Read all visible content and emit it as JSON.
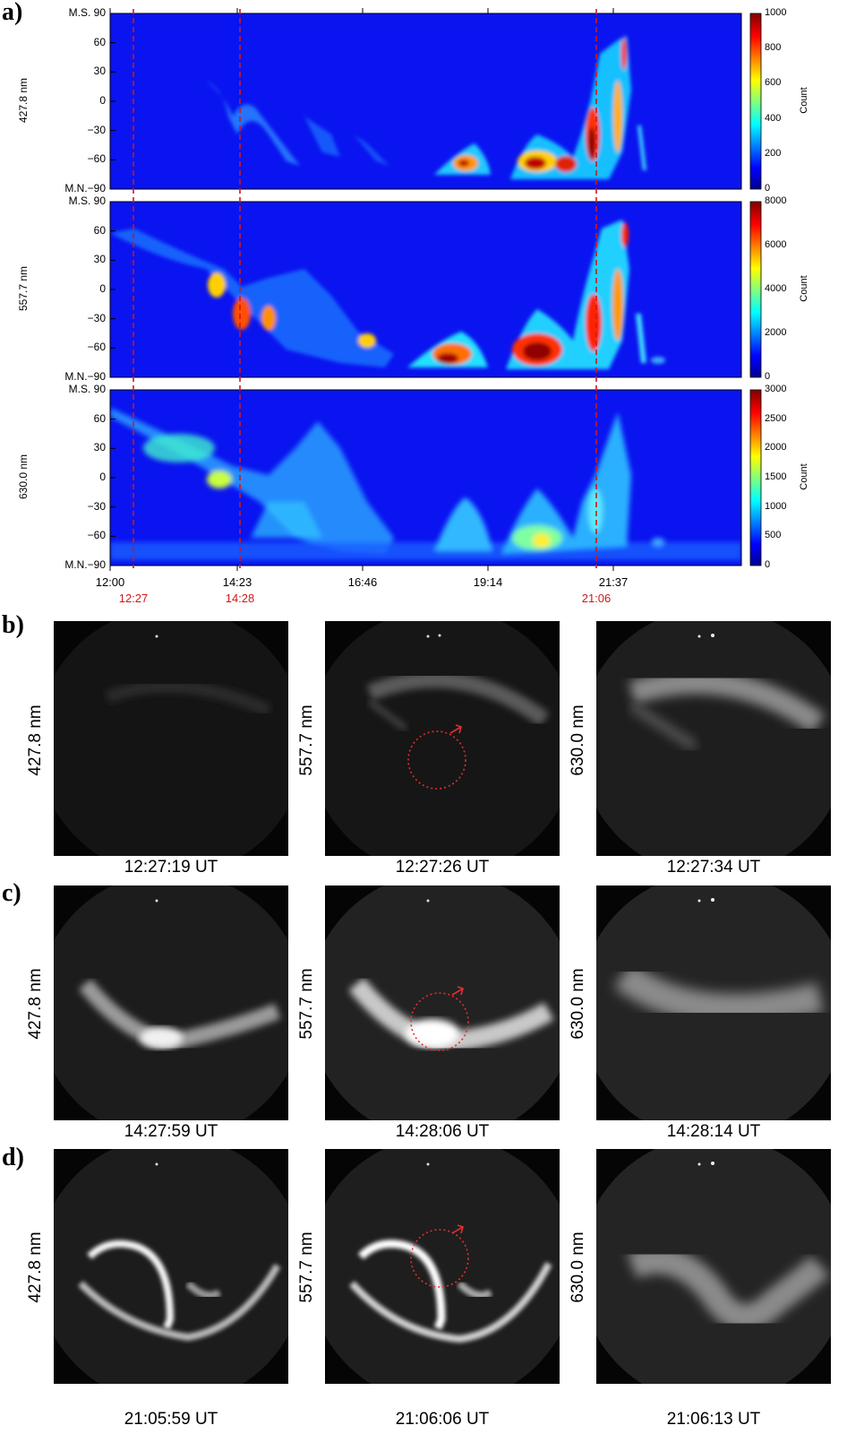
{
  "panels": {
    "a": "a)",
    "b": "b)",
    "c": "c)",
    "d": "d)"
  },
  "keograms": [
    {
      "wavelength": "427.8 nm",
      "y_ticks": [
        "M.S. 90",
        "60",
        "30",
        "0",
        "−30",
        "−60",
        "M.N.−90"
      ],
      "colorbar_ticks": [
        "1000",
        "800",
        "600",
        "400",
        "200",
        "0"
      ],
      "colorbar_label": "Count",
      "colorbar_max": 1000
    },
    {
      "wavelength": "557.7 nm",
      "y_ticks": [
        "M.S. 90",
        "60",
        "30",
        "0",
        "−30",
        "−60",
        "M.N.−90"
      ],
      "colorbar_ticks": [
        "8000",
        "6000",
        "4000",
        "2000",
        "0"
      ],
      "colorbar_label": "Count",
      "colorbar_max": 8000
    },
    {
      "wavelength": "630.0 nm",
      "y_ticks": [
        "M.S. 90",
        "60",
        "30",
        "0",
        "−30",
        "−60",
        "M.N.−90"
      ],
      "colorbar_ticks": [
        "3000",
        "2500",
        "2000",
        "1500",
        "1000",
        "500",
        "0"
      ],
      "colorbar_label": "Count",
      "colorbar_max": 3000
    }
  ],
  "x_ticks": [
    "12:00",
    "14:23",
    "16:46",
    "19:14",
    "21:37"
  ],
  "event_times": [
    "12:27",
    "14:28",
    "21:06"
  ],
  "colors": {
    "event_line": "#d01818",
    "colormap": [
      "#00008f",
      "#0000ff",
      "#00ffff",
      "#ffff00",
      "#ff0000",
      "#800000"
    ]
  },
  "allsky_rows": [
    {
      "panel": "b",
      "images": [
        {
          "wavelength": "427.8 nm",
          "time": "12:27:19 UT"
        },
        {
          "wavelength": "557.7 nm",
          "time": "12:27:26 UT"
        },
        {
          "wavelength": "630.0 nm",
          "time": "12:27:34 UT"
        }
      ]
    },
    {
      "panel": "c",
      "images": [
        {
          "wavelength": "427.8 nm",
          "time": "14:27:59 UT"
        },
        {
          "wavelength": "557.7 nm",
          "time": "14:28:06 UT"
        },
        {
          "wavelength": "630.0 nm",
          "time": "14:28:14 UT"
        }
      ]
    },
    {
      "panel": "d",
      "images": [
        {
          "wavelength": "427.8 nm",
          "time": "21:05:59 UT"
        },
        {
          "wavelength": "557.7 nm",
          "time": "21:06:06 UT"
        },
        {
          "wavelength": "630.0 nm",
          "time": "21:06:13 UT"
        }
      ]
    }
  ]
}
